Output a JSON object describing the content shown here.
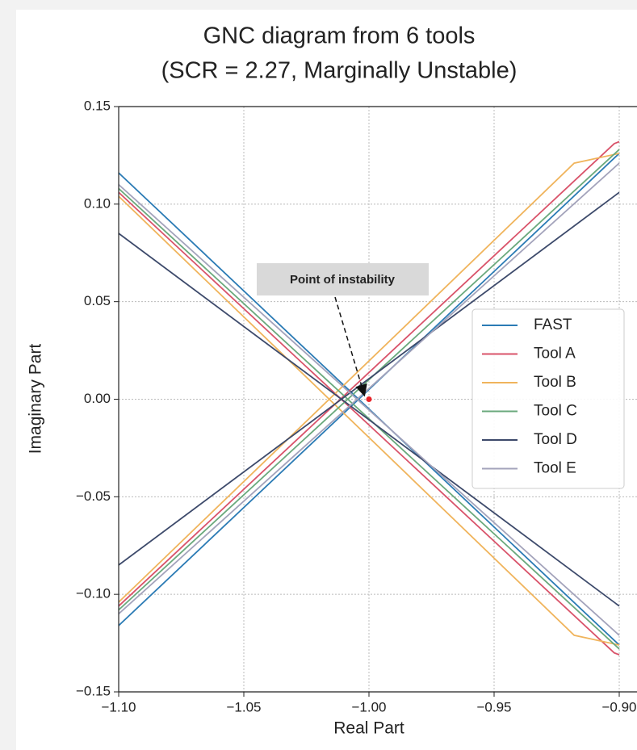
{
  "chart_data": {
    "type": "line",
    "title": [
      "GNC diagram from 6 tools",
      "(SCR = 2.27, Marginally Unstable)"
    ],
    "xlabel": "Real Part",
    "ylabel": "Imaginary Part",
    "xlim": [
      -1.1,
      -0.9
    ],
    "ylim": [
      -0.15,
      0.15
    ],
    "xticks": [
      {
        "value": -1.1,
        "label": "−1.10"
      },
      {
        "value": -1.05,
        "label": "−1.05"
      },
      {
        "value": -1.0,
        "label": "−1.00"
      },
      {
        "value": -0.95,
        "label": "−0.95"
      },
      {
        "value": -0.9,
        "label": "−0.90"
      }
    ],
    "yticks": [
      {
        "value": -0.15,
        "label": "−0.15"
      },
      {
        "value": -0.1,
        "label": "−0.10"
      },
      {
        "value": -0.05,
        "label": "−0.05"
      },
      {
        "value": 0,
        "label": "0.00"
      },
      0.05,
      {
        "value": 0.1,
        "label": "0.10"
      },
      0.15
    ],
    "grid": true,
    "legend": "right",
    "series": [
      {
        "name": "FAST",
        "color": "#2b7bb5",
        "x": [
          -1.1,
          -0.9,
          null,
          -1.1,
          -0.9
        ],
        "values": [
          0.116,
          -0.126,
          null,
          -0.116,
          0.126
        ]
      },
      {
        "name": "Tool A",
        "color": "#d9536a",
        "x": [
          -1.1,
          -0.902,
          -0.9,
          null,
          -1.1,
          -0.902,
          -0.9
        ],
        "values": [
          0.106,
          -0.13,
          -0.131,
          null,
          -0.106,
          0.131,
          0.132
        ]
      },
      {
        "name": "Tool B",
        "color": "#f0b45c",
        "x": [
          -1.1,
          -0.918,
          -0.9,
          null,
          -1.1,
          -0.918,
          -0.9
        ],
        "values": [
          0.104,
          -0.121,
          -0.126,
          null,
          -0.104,
          0.121,
          0.126
        ]
      },
      {
        "name": "Tool C",
        "color": "#6aa97c",
        "x": [
          -1.1,
          -0.9,
          null,
          -1.1,
          -0.9
        ],
        "values": [
          0.108,
          -0.128,
          null,
          -0.108,
          0.128
        ]
      },
      {
        "name": "Tool D",
        "color": "#3d4a6b",
        "x": [
          -1.1,
          -0.9,
          null,
          -1.1,
          -0.9
        ],
        "values": [
          0.085,
          -0.106,
          null,
          -0.085,
          0.106
        ]
      },
      {
        "name": "Tool E",
        "color": "#a3a3bb",
        "x": [
          -1.1,
          -0.9,
          null,
          -1.1,
          -0.9
        ],
        "values": [
          0.11,
          -0.121,
          null,
          -0.11,
          0.121
        ]
      }
    ],
    "annotation": {
      "text": "Point of instability",
      "x": -1.0,
      "y": 0.0,
      "color": "#e8242a"
    }
  }
}
